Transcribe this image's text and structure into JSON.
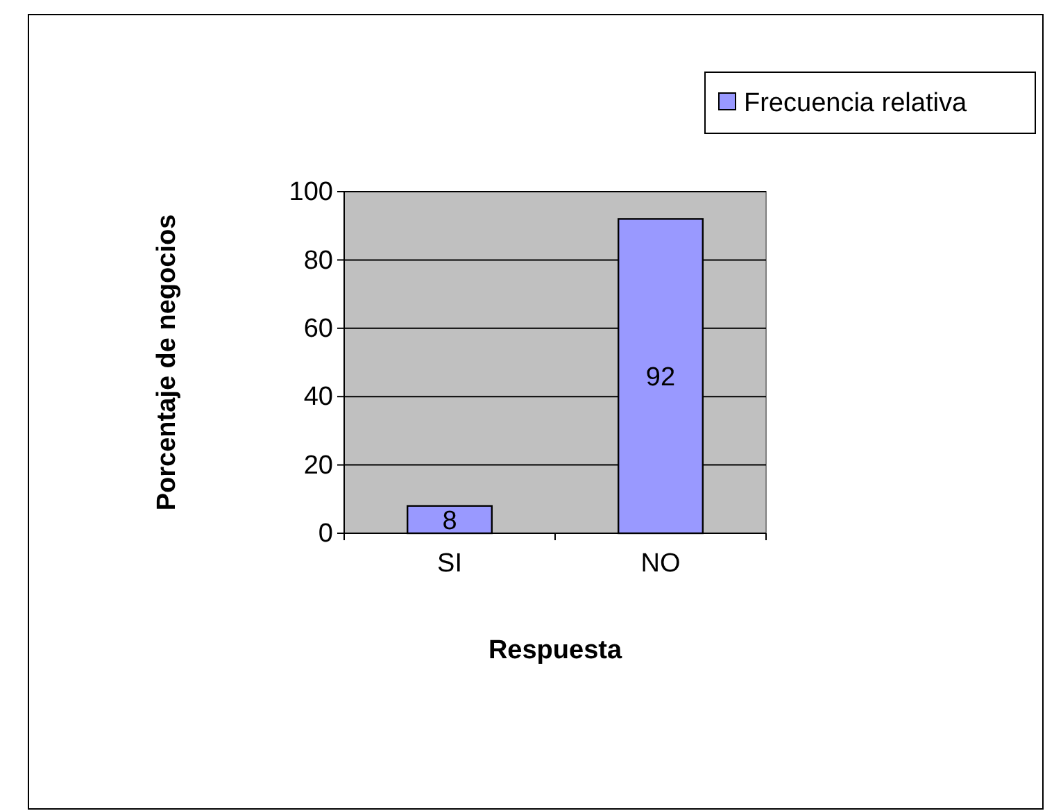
{
  "chart_data": {
    "type": "bar",
    "xlabel": "Respuesta",
    "ylabel": "Porcentaje de negocios",
    "categories": [
      "SI",
      "NO"
    ],
    "series": [
      {
        "name": "Frecuencia relativa",
        "color": "#9999ff",
        "values": [
          8,
          92
        ]
      }
    ],
    "ylim": [
      0,
      100
    ],
    "yticks": [
      0,
      20,
      40,
      60,
      80,
      100
    ],
    "grid": "y",
    "legend": "top right",
    "data_labels": true
  }
}
